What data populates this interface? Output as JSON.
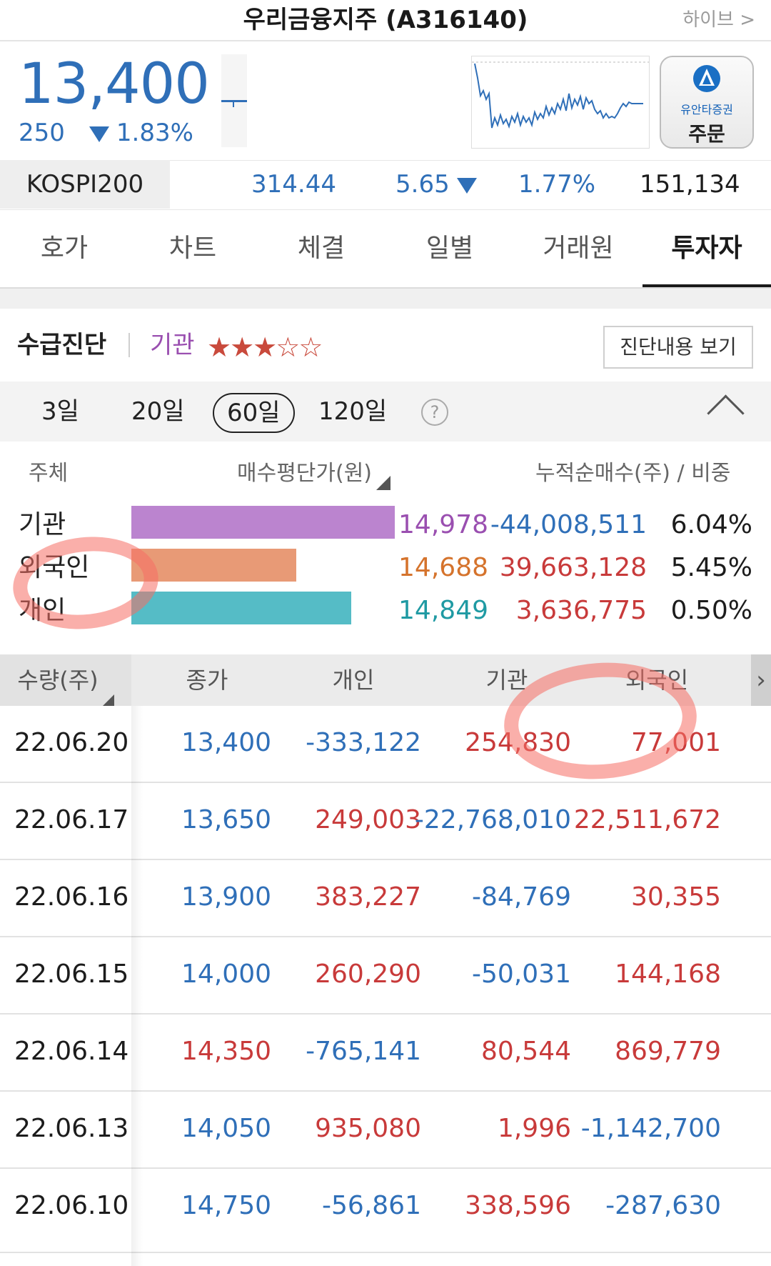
{
  "header": {
    "title": "우리금융지주 (A316140)",
    "link_label": "하이브 >"
  },
  "quote": {
    "price": "13,400",
    "change": "250",
    "change_pct": "1.83%",
    "direction": "down",
    "order_button": {
      "brand": "유안타증권",
      "label": "주문"
    }
  },
  "index_bar": {
    "name": "KOSPI200",
    "value": "314.44",
    "change": "5.65",
    "change_pct": "1.77%",
    "volume": "151,134"
  },
  "tabs": [
    "호가",
    "차트",
    "체결",
    "일별",
    "거래원",
    "투자자"
  ],
  "active_tab": "투자자",
  "diagnosis": {
    "title": "수급진단",
    "subject": "기관",
    "stars_filled": 3,
    "stars_total": 5,
    "button": "진단내용 보기"
  },
  "periods": [
    "3일",
    "20일",
    "60일",
    "120일"
  ],
  "selected_period": "60일",
  "summary": {
    "headers": {
      "subject": "주체",
      "avg_price": "매수평단가(원)",
      "cumulative": "누적순매수(주) / 비중"
    },
    "rows": [
      {
        "label": "기관",
        "avg_price": "14,978",
        "net_buy": "-44,008,511",
        "share": "6.04%",
        "bar_value": 14978,
        "bar_color": "#bb84cf"
      },
      {
        "label": "외국인",
        "avg_price": "14,688",
        "net_buy": "39,663,128",
        "share": "5.45%",
        "bar_value": 14688,
        "bar_color": "#e89a76"
      },
      {
        "label": "개인",
        "avg_price": "14,849",
        "net_buy": "3,636,775",
        "share": "0.50%",
        "bar_value": 14849,
        "bar_color": "#55bcc6"
      }
    ]
  },
  "table": {
    "headers": [
      "수량(주)",
      "종가",
      "개인",
      "기관",
      "외국인"
    ],
    "more_icon": "chevron-right-icon",
    "rows": [
      {
        "date": "22.06.20",
        "close": "13,400",
        "individual": "-333,122",
        "institution": "254,830",
        "foreign": "77,001"
      },
      {
        "date": "22.06.17",
        "close": "13,650",
        "individual": "249,003",
        "institution": "-22,768,010",
        "foreign": "22,511,672"
      },
      {
        "date": "22.06.16",
        "close": "13,900",
        "individual": "383,227",
        "institution": "-84,769",
        "foreign": "30,355"
      },
      {
        "date": "22.06.15",
        "close": "14,000",
        "individual": "260,290",
        "institution": "-50,031",
        "foreign": "144,168"
      },
      {
        "date": "22.06.14",
        "close": "14,350",
        "individual": "-765,141",
        "institution": "80,544",
        "foreign": "869,779"
      },
      {
        "date": "22.06.13",
        "close": "14,050",
        "individual": "935,080",
        "institution": "1,996",
        "foreign": "-1,142,700"
      },
      {
        "date": "22.06.10",
        "close": "14,750",
        "individual": "-56,861",
        "institution": "338,596",
        "foreign": "-287,630"
      }
    ]
  },
  "colors": {
    "up": "#c83a3a",
    "down": "#2f6fb8",
    "accent_purple": "#9a4fb0",
    "stars": "#c94a3c"
  }
}
